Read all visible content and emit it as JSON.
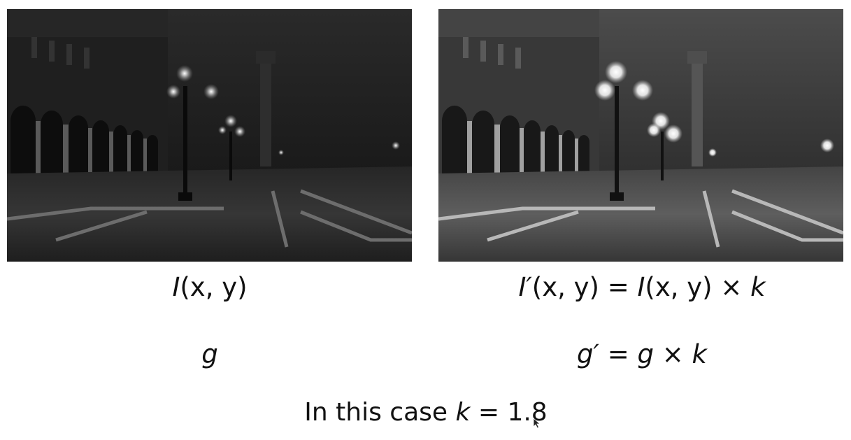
{
  "left_panel": {
    "formula_function": "I",
    "formula_args": "(x, y)",
    "gradient": "g"
  },
  "right_panel": {
    "formula_function": "I′",
    "formula_args": "(x, y)",
    "formula_equals": " = ",
    "formula_rhs_function": "I",
    "formula_rhs_args": "(x, y)",
    "formula_times": " × ",
    "formula_k": "k",
    "gradient_lhs": "g′",
    "gradient_equals": " = ",
    "gradient_g": "g",
    "gradient_times": " × ",
    "gradient_k": "k"
  },
  "caption": {
    "prefix": "In this case ",
    "variable": "k",
    "equals": " = ",
    "value": "1.8"
  },
  "brightness_factor": 1.8,
  "photo_style": "grayscale night street scene with lamp posts and arcade",
  "colors": {
    "background": "#ffffff",
    "text": "#111111"
  }
}
